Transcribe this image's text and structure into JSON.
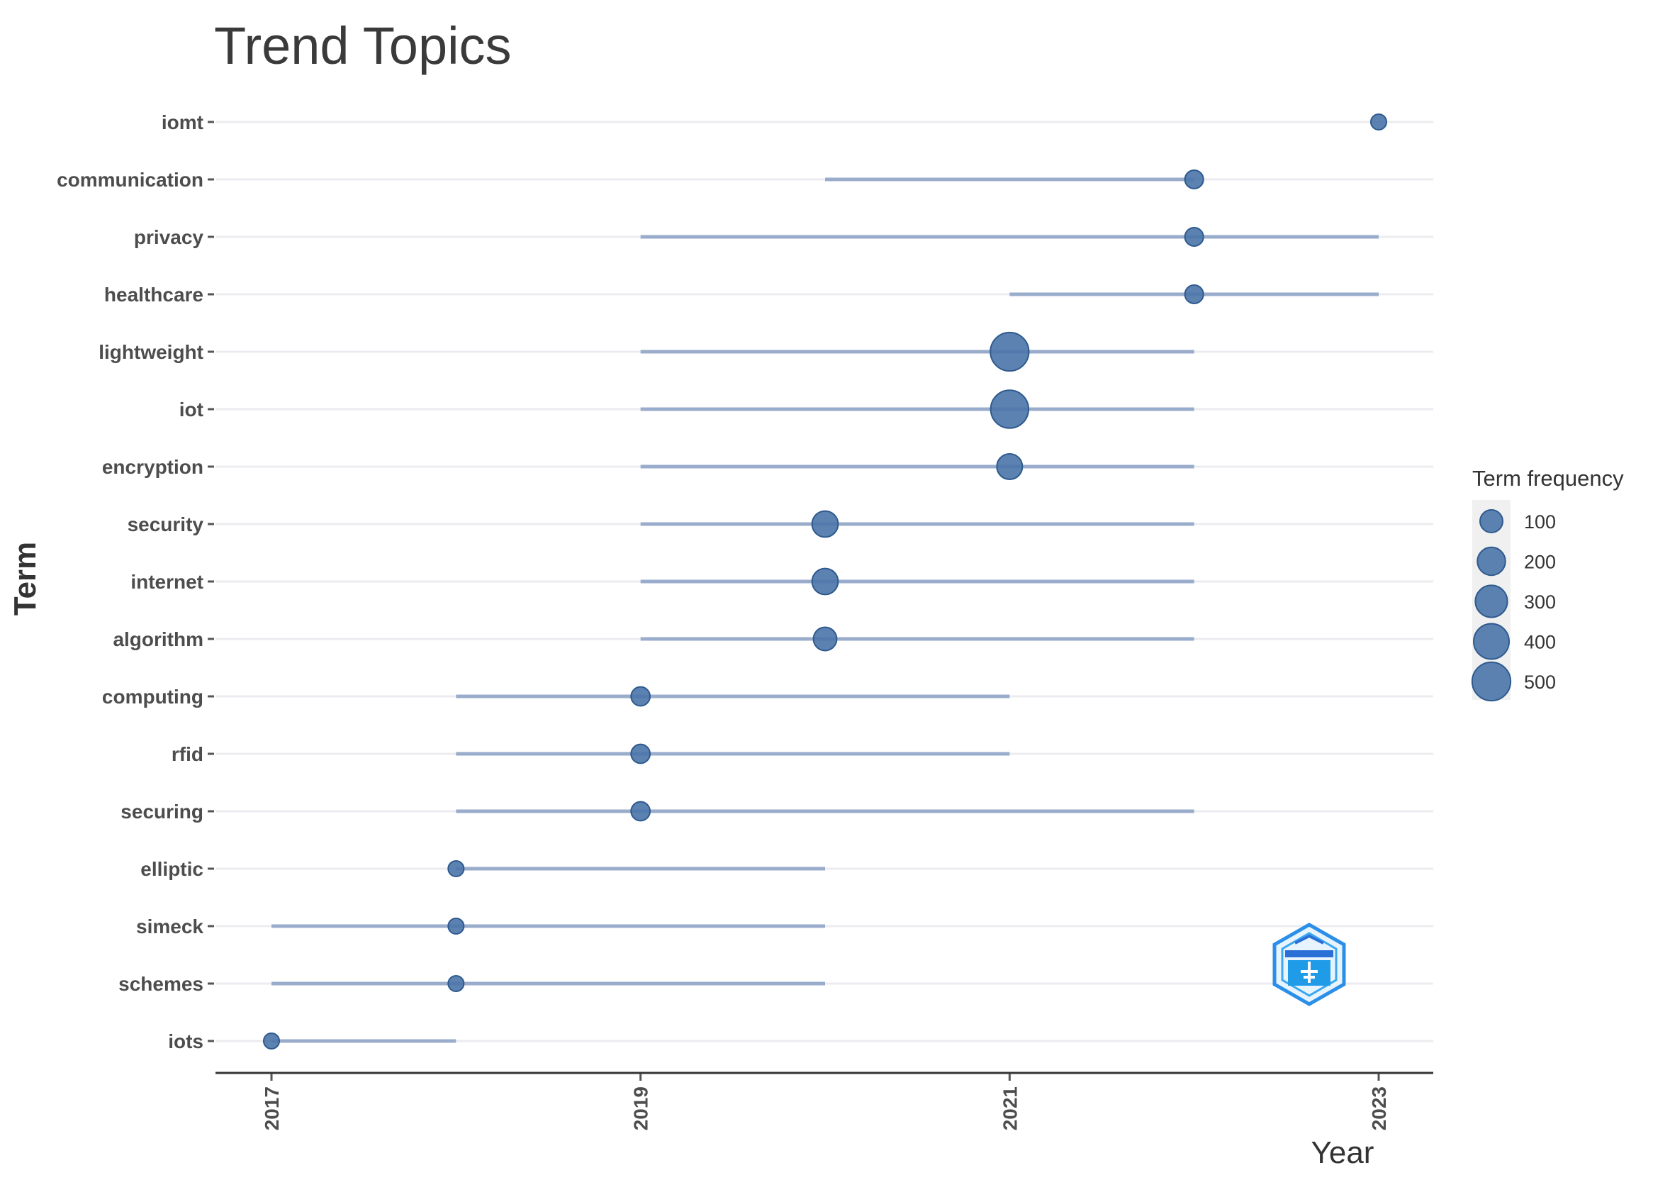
{
  "chart_data": {
    "type": "scatter",
    "title": "Trend Topics",
    "xlabel": "Year",
    "ylabel": "Term",
    "xlim": [
      2016.85,
      2023.3
    ],
    "x_ticks": [
      2017,
      2019,
      2021,
      2023
    ],
    "grid": true,
    "legend_position": "right",
    "series": [
      {
        "term": "iomt",
        "q1": 2023,
        "median": 2023,
        "q3": 2023,
        "freq": 20
      },
      {
        "term": "communication",
        "q1": 2020,
        "median": 2022,
        "q3": 2022,
        "freq": 45
      },
      {
        "term": "privacy",
        "q1": 2019,
        "median": 2022,
        "q3": 2023,
        "freq": 45
      },
      {
        "term": "healthcare",
        "q1": 2021,
        "median": 2022,
        "q3": 2023,
        "freq": 45
      },
      {
        "term": "lightweight",
        "q1": 2019,
        "median": 2021,
        "q3": 2022,
        "freq": 500
      },
      {
        "term": "iot",
        "q1": 2019,
        "median": 2021,
        "q3": 2022,
        "freq": 480
      },
      {
        "term": "encryption",
        "q1": 2019,
        "median": 2021,
        "q3": 2022,
        "freq": 150
      },
      {
        "term": "security",
        "q1": 2019,
        "median": 2020,
        "q3": 2022,
        "freq": 160
      },
      {
        "term": "internet",
        "q1": 2019,
        "median": 2020,
        "q3": 2022,
        "freq": 160
      },
      {
        "term": "algorithm",
        "q1": 2019,
        "median": 2020,
        "q3": 2022,
        "freq": 110
      },
      {
        "term": "computing",
        "q1": 2018,
        "median": 2019,
        "q3": 2021,
        "freq": 50
      },
      {
        "term": "rfid",
        "q1": 2018,
        "median": 2019,
        "q3": 2021,
        "freq": 50
      },
      {
        "term": "securing",
        "q1": 2018,
        "median": 2019,
        "q3": 2022,
        "freq": 50
      },
      {
        "term": "elliptic",
        "q1": 2018,
        "median": 2018,
        "q3": 2020,
        "freq": 20
      },
      {
        "term": "simeck",
        "q1": 2017,
        "median": 2018,
        "q3": 2020,
        "freq": 20
      },
      {
        "term": "schemes",
        "q1": 2017,
        "median": 2018,
        "q3": 2020,
        "freq": 20
      },
      {
        "term": "iots",
        "q1": 2017,
        "median": 2017,
        "q3": 2018,
        "freq": 20
      }
    ],
    "legend": {
      "title": "Term frequency",
      "items": [
        100,
        200,
        300,
        400,
        500
      ]
    },
    "colors": {
      "point": "#4a74a8",
      "point_stroke": "#2f5a8e",
      "segment": "#9aaccb",
      "grid": "#ececf0",
      "axis": "#333333",
      "legend_bg": "#f0f0f0",
      "logo": "#2a8fe8"
    }
  }
}
